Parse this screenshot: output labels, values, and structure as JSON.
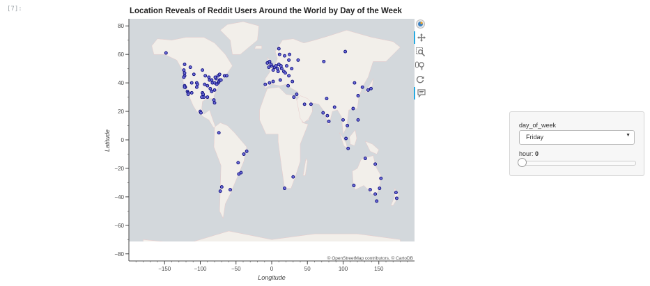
{
  "cell_prompt": "[7]:",
  "toolbar": {
    "icons": [
      "bokeh-logo-icon",
      "pan-icon",
      "box-zoom-icon",
      "wheel-zoom-icon",
      "reset-icon",
      "hover-icon"
    ]
  },
  "widget": {
    "select_label": "day_of_week",
    "select_value": "Friday",
    "slider_label": "hour: ",
    "slider_value": "0",
    "slider_fraction": 0
  },
  "chart_data": {
    "type": "scatter",
    "title": "Location Reveals of Reddit Users Around the World by Day of the Week",
    "xlabel": "Longitude",
    "ylabel": "Latitude",
    "xlim": [
      -200,
      200
    ],
    "ylim": [
      -85,
      85
    ],
    "xticks": [
      -150,
      -100,
      -50,
      0,
      50,
      100,
      150
    ],
    "yticks": [
      80,
      60,
      40,
      20,
      0,
      -20,
      -40,
      -60,
      -80
    ],
    "grid": false,
    "attribution": "© OpenStreetMap contributors, © CartoDB",
    "colors": {
      "point_fill": "#6b6bd6",
      "point_edge": "#0a0a7a",
      "land": "#f2efea",
      "ocean": "#d3d8dc"
    },
    "points": [
      [
        -148,
        61
      ],
      [
        -123,
        49
      ],
      [
        -122,
        47
      ],
      [
        -122,
        45
      ],
      [
        -123,
        44
      ],
      [
        -122,
        38
      ],
      [
        -121,
        37
      ],
      [
        -122,
        37
      ],
      [
        -118,
        34
      ],
      [
        -117,
        33
      ],
      [
        -117,
        32
      ],
      [
        -112,
        33
      ],
      [
        -112,
        40
      ],
      [
        -105,
        40
      ],
      [
        -104,
        39
      ],
      [
        -105,
        37
      ],
      [
        -95,
        30
      ],
      [
        -97,
        33
      ],
      [
        -96,
        32
      ],
      [
        -98,
        30
      ],
      [
        -87,
        42
      ],
      [
        -88,
        44
      ],
      [
        -84,
        42
      ],
      [
        -83,
        40
      ],
      [
        -80,
        40
      ],
      [
        -78,
        43
      ],
      [
        -75,
        40
      ],
      [
        -74,
        41
      ],
      [
        -73,
        42
      ],
      [
        -71,
        42
      ],
      [
        -77,
        39
      ],
      [
        -80,
        35
      ],
      [
        -84,
        34
      ],
      [
        -81,
        28
      ],
      [
        -80,
        26
      ],
      [
        -90,
        30
      ],
      [
        -93,
        45
      ],
      [
        -94,
        39
      ],
      [
        -90,
        38
      ],
      [
        -86,
        36
      ],
      [
        -79,
        44
      ],
      [
        -75,
        45
      ],
      [
        -73,
        46
      ],
      [
        -66,
        45
      ],
      [
        -63,
        45
      ],
      [
        -100,
        20
      ],
      [
        -99,
        19
      ],
      [
        -114,
        51
      ],
      [
        -122,
        53
      ],
      [
        -109,
        46
      ],
      [
        -97,
        49
      ],
      [
        -74,
        5
      ],
      [
        -43,
        -23
      ],
      [
        -47,
        -16
      ],
      [
        -58,
        -35
      ],
      [
        -70,
        -33
      ],
      [
        -39,
        -10
      ],
      [
        -35,
        -8
      ],
      [
        -46,
        -24
      ],
      [
        -72,
        -36
      ],
      [
        -3,
        40
      ],
      [
        -9,
        39
      ],
      [
        2,
        41
      ],
      [
        -4,
        51
      ],
      [
        0,
        52
      ],
      [
        -1,
        53
      ],
      [
        -3,
        55
      ],
      [
        -6,
        54
      ],
      [
        2,
        49
      ],
      [
        4,
        51
      ],
      [
        6,
        52
      ],
      [
        8,
        50
      ],
      [
        10,
        53
      ],
      [
        9,
        48
      ],
      [
        13,
        52
      ],
      [
        17,
        48
      ],
      [
        14,
        50
      ],
      [
        12,
        42
      ],
      [
        19,
        47
      ],
      [
        21,
        52
      ],
      [
        11,
        60
      ],
      [
        18,
        59
      ],
      [
        25,
        60
      ],
      [
        10,
        64
      ],
      [
        24,
        56
      ],
      [
        23,
        38
      ],
      [
        29,
        41
      ],
      [
        37,
        56
      ],
      [
        24,
        45
      ],
      [
        28,
        50
      ],
      [
        31,
        30
      ],
      [
        30,
        -26
      ],
      [
        18,
        -34
      ],
      [
        35,
        32
      ],
      [
        46,
        25
      ],
      [
        55,
        25
      ],
      [
        72,
        19
      ],
      [
        77,
        29
      ],
      [
        80,
        13
      ],
      [
        88,
        23
      ],
      [
        78,
        17
      ],
      [
        100,
        14
      ],
      [
        104,
        1
      ],
      [
        106,
        10
      ],
      [
        114,
        22
      ],
      [
        116,
        40
      ],
      [
        121,
        31
      ],
      [
        127,
        37
      ],
      [
        139,
        36
      ],
      [
        135,
        35
      ],
      [
        121,
        14
      ],
      [
        107,
        -6
      ],
      [
        151,
        -34
      ],
      [
        145,
        -38
      ],
      [
        153,
        -27
      ],
      [
        115,
        -32
      ],
      [
        138,
        -35
      ],
      [
        147,
        -43
      ],
      [
        175,
        -41
      ],
      [
        174,
        -37
      ],
      [
        131,
        -13
      ],
      [
        103,
        62
      ],
      [
        73,
        55
      ],
      [
        145,
        -17
      ]
    ]
  }
}
